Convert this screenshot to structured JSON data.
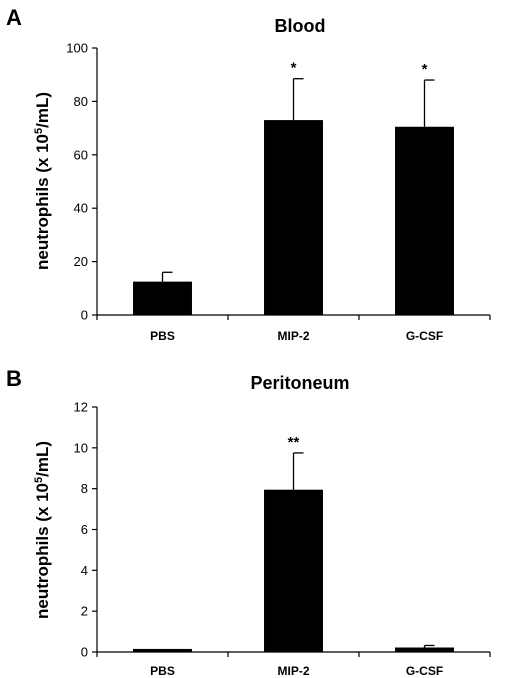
{
  "chart_data": [
    {
      "type": "bar",
      "panel": "A",
      "title": "Blood",
      "ylabel": "neutrophils (x 10^5/mL)",
      "ylabel_parts": {
        "pre": "neutrophils (x 10",
        "sup": "5",
        "post": "/mL)"
      },
      "categories": [
        "PBS",
        "MIP-2",
        "G-CSF"
      ],
      "values": [
        12.5,
        73,
        70.5
      ],
      "errors": [
        3.5,
        15.5,
        17.5
      ],
      "annotations": [
        "",
        "*",
        "*"
      ],
      "ylim": [
        0,
        100
      ],
      "yticks": [
        0,
        20,
        40,
        60,
        80,
        100
      ],
      "grid": false,
      "bar_color": "#000000"
    },
    {
      "type": "bar",
      "panel": "B",
      "title": "Peritoneum",
      "ylabel": "neutrophils (x 10^5/mL)",
      "ylabel_parts": {
        "pre": "neutrophils (x 10",
        "sup": "5",
        "post": "/mL)"
      },
      "categories": [
        "PBS",
        "MIP-2",
        "G-CSF"
      ],
      "values": [
        0.15,
        7.95,
        0.22
      ],
      "errors": [
        0,
        1.8,
        0.1
      ],
      "annotations": [
        "",
        "**",
        ""
      ],
      "ylim": [
        0,
        12
      ],
      "yticks": [
        0,
        2,
        4,
        6,
        8,
        10,
        12
      ],
      "grid": false,
      "bar_color": "#000000"
    }
  ]
}
